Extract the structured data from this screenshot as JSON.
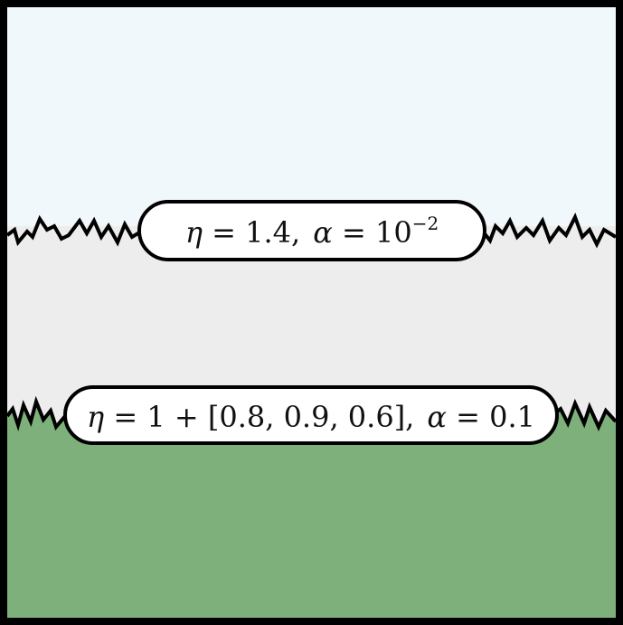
{
  "diagram": {
    "regions": [
      {
        "name": "top-region",
        "color": "#f0f8fc"
      },
      {
        "name": "middle-region",
        "color": "#ededed"
      },
      {
        "name": "bottom-region",
        "color": "#7db07a"
      }
    ],
    "frame_color": "#000000",
    "labels": {
      "upper": {
        "eta_symbol": "η",
        "eta_value": " = 1.4,",
        "alpha_symbol": "α",
        "alpha_value": " = 10",
        "alpha_exponent": "−2"
      },
      "lower": {
        "eta_symbol": "η",
        "eta_value": " = 1 + [0.8, 0.9, 0.6],",
        "alpha_symbol": "α",
        "alpha_value": " = 0.1"
      }
    }
  }
}
